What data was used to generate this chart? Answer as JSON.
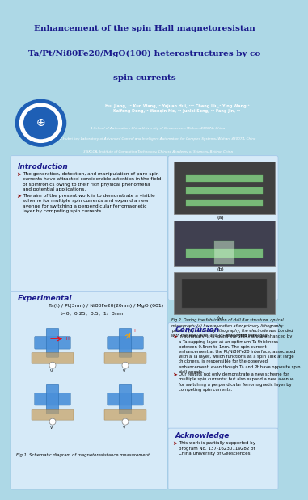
{
  "title_line1": "Enhancement of the spin Hall magnetoresistan",
  "title_line2": "Ta/Pt/Ni80Fe20/MgO(100) heterostructures by co",
  "title_line3": "spin currents",
  "title_bg": "#add8e6",
  "title_color": "#1a1a8c",
  "header_bg": "#00008b",
  "body_bg": "#e8f4f8",
  "authors": "Hui Jiang, ¹² Kun Wang,¹² Yajuan Hui, ¹²⁰ Cheng Liu,¹ Ying Wang,³\nKaifeng Dong,¹² Wenqin Mo, ¹² Junlei Song, ¹² Fang Jin, ¹²",
  "affil1": "1.School of Automation, China University of Geosciences, Wuhan, 430074, China",
  "affil2": "2.Hubei key Laboratory of Advanced Control and Intelligent Automation for Complex Systems, Wuhan, 430074, China",
  "affil3": "3.SKLCA, Institute of Computing Technology, Chinese Academy of Sciences, Beijing, China",
  "intro_title": "Introduction",
  "intro_bullet1": "The generation, detection, and manipulation of pure spin currents have attracted considerable attention in the field of spintronics owing to their rich physical phenomena and potential applications.",
  "intro_bullet2": "The aim of the present work is to demonstrate a visible scheme for multiple spin currents and expand a new avenue for switching a perpendicular ferromagnetic layer by competing spin currents.",
  "exp_title": "Experimental",
  "exp_formula": "Ta(t) / Pt(3nm) / Ni80Fe20(20nm) / MgO (001)",
  "exp_thickness": "t=0、0.25、0.5、1、3nm",
  "exp_fig_caption": "Fig 1. Schematic diagram of magnetoresistance measurement",
  "fig2_caption": "Fig 2. During the fabrication of Hall Bar structure, optical micrograph: (a) heterojunction after primary lithography pattern; (b) secondary lithography, the electrode was bonded with the shell wire, and (c) device was packaged.",
  "conclusion_title": "Conclusion",
  "conclusion_bullet1": "In summary, it is found the SMR ratio is enhanced by a Ta capping layer at an optimum Ta thickness between 0.5nm to 1nm. The spin current enhancement at the Pt/Ni80Fe20 interface, associated with a Ta layer, which functions as a spin sink at large thickness, is responsible for the observed enhancement, even though Ta and Pt have opposite spin Hall angels.",
  "conclusion_bullet2": "Our results not only demonstrate a new scheme for multiple spin currents; but also expand a new avenue for switching a perpendicular ferromagnetic layer by competing spin currents.",
  "ack_title": "Acknowledge",
  "ack_text": "This work is partially supported by program No. 137-16230119282 of China University of Geosciences.",
  "section_title_color": "#1a1a8c",
  "body_text_color": "#000000",
  "bullet_color": "#8b0000"
}
